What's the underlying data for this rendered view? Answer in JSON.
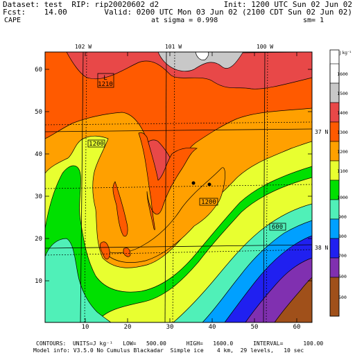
{
  "header": {
    "line1_left": "Dataset: test  RIP: rip20020602 d2",
    "line1_right": "Init: 1200 UTC Sun 02 Jun 02",
    "line2_left": "Fcst:    14.00",
    "line2_right": "Valid: 0200 UTC Mon 03 Jun 02 (2100 CDT Sun 02 Jun 02)",
    "line3_left": "CAPE",
    "line3_mid": "at sigma = 0.998",
    "line3_right": "sm= 1"
  },
  "map": {
    "lon_labels": [
      "102 W",
      "101 W",
      "100 W"
    ],
    "lat_labels": [
      "37 N",
      "38 N"
    ],
    "x_ticks": [
      "10",
      "20",
      "30",
      "40",
      "50",
      "60"
    ],
    "y_ticks": [
      "10",
      "20",
      "30",
      "40",
      "50",
      "60"
    ],
    "contour_labels": [
      "L",
      "1210",
      "1200",
      "1200",
      "600"
    ]
  },
  "colorbar": {
    "units": "J kg⁻¹",
    "levels": [
      "1600",
      "1500",
      "1400",
      "1300",
      "1200",
      "1100",
      "1000",
      "900",
      "800",
      "700",
      "600",
      "500"
    ],
    "colors": {
      "1600": "#ffffff",
      "1500": "#c8c8c8",
      "1400": "#e84848",
      "1300": "#ff5a00",
      "1200": "#ffa000",
      "1100": "#e8ff30",
      "1000": "#00e000",
      "900": "#50f0b8",
      "800": "#00a0ff",
      "700": "#2020f0",
      "600": "#8030b0",
      "500": "#a0501a"
    }
  },
  "footer": {
    "line1": "CONTOURS:  UNITS=J kg⁻¹   LOW=   500.00      HIGH=   1600.0      INTERVAL=      100.00",
    "line2": "Model info: V3.5.0 No Cumulus Blackadar  Simple ice    4 km,  29 levels,   10 sec"
  }
}
